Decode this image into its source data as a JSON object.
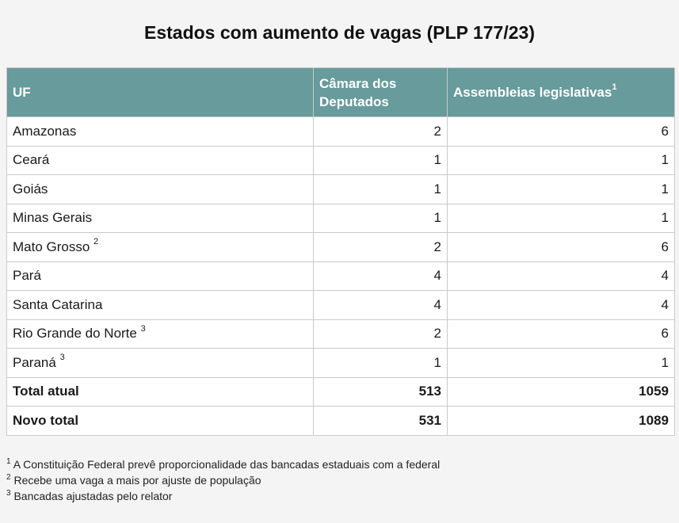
{
  "title": "Estados com aumento de vagas (PLP 177/23)",
  "columns": {
    "uf": "UF",
    "camara": "Câmara dos Deputados",
    "assembleias": "Assembleias legislativas",
    "assembleias_sup": "1"
  },
  "rows": [
    {
      "uf": "Amazonas",
      "sup": "",
      "camara": "2",
      "assembleias": "6"
    },
    {
      "uf": "Ceará",
      "sup": "",
      "camara": "1",
      "assembleias": "1"
    },
    {
      "uf": "Goiás",
      "sup": "",
      "camara": "1",
      "assembleias": "1"
    },
    {
      "uf": "Minas Gerais",
      "sup": "",
      "camara": "1",
      "assembleias": "1"
    },
    {
      "uf": "Mato Grosso",
      "sup": "2",
      "camara": "2",
      "assembleias": "6"
    },
    {
      "uf": "Pará",
      "sup": "",
      "camara": "4",
      "assembleias": "4"
    },
    {
      "uf": "Santa Catarina",
      "sup": "",
      "camara": "4",
      "assembleias": "4"
    },
    {
      "uf": "Rio Grande do Norte",
      "sup": "3",
      "camara": "2",
      "assembleias": "6"
    },
    {
      "uf": "Paraná",
      "sup": "3",
      "camara": "1",
      "assembleias": "1"
    }
  ],
  "totals": [
    {
      "label": "Total atual",
      "camara": "513",
      "assembleias": "1059"
    },
    {
      "label": "Novo total",
      "camara": "531",
      "assembleias": "1089"
    }
  ],
  "footnotes": [
    {
      "mark": "1",
      "text": "A Constituição Federal prevê proporcionalidade das bancadas estaduais com a federal"
    },
    {
      "mark": "2",
      "text": "Recebe uma vaga a mais por ajuste de população"
    },
    {
      "mark": "3",
      "text": "Bancadas ajustadas pelo relator"
    }
  ],
  "colors": {
    "header_bg": "#679b9c",
    "header_text": "#ffffff",
    "border": "#c9c9c9",
    "page_bg": "#f4f4f4"
  }
}
